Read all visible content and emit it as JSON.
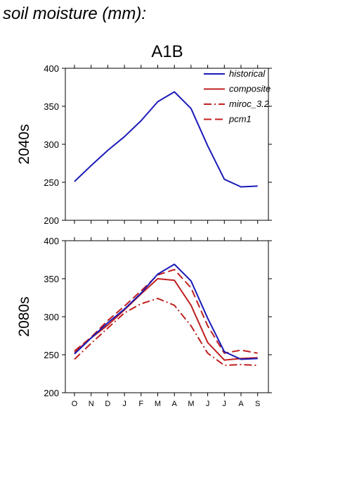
{
  "page": {
    "heading": "soil moisture (mm):",
    "scenario": "A1B"
  },
  "colors": {
    "historical": "#1a1ab8",
    "models": "#c02020",
    "axis": "#000000"
  },
  "chart_data": [
    {
      "type": "line",
      "row_label": "2040s",
      "categories": [
        "O",
        "N",
        "D",
        "J",
        "F",
        "M",
        "A",
        "M",
        "J",
        "J",
        "A",
        "S"
      ],
      "ylim": [
        200,
        400
      ],
      "yticks": [
        200,
        250,
        300,
        350,
        400
      ],
      "series": [
        {
          "name": "historical",
          "style": "solid",
          "color": "#1a1ab8",
          "values": [
            251,
            272,
            292,
            310,
            331,
            356,
            369,
            347,
            298,
            254,
            244,
            245
          ]
        }
      ],
      "legend": {
        "placement": "top-right",
        "entries": [
          {
            "label": "historical",
            "style": "solid",
            "color": "#1a1ab8"
          },
          {
            "label": "composite",
            "style": "solid",
            "color": "#c02020"
          },
          {
            "label": "miroc_3.2",
            "style": "dashdot",
            "color": "#c02020"
          },
          {
            "label": "pcm1",
            "style": "dashed",
            "color": "#c02020"
          }
        ]
      }
    },
    {
      "type": "line",
      "row_label": "2080s",
      "categories": [
        "O",
        "N",
        "D",
        "J",
        "F",
        "M",
        "A",
        "M",
        "J",
        "J",
        "A",
        "S"
      ],
      "ylim": [
        200,
        400
      ],
      "yticks": [
        200,
        250,
        300,
        350,
        400
      ],
      "series": [
        {
          "name": "historical",
          "style": "solid",
          "color": "#1a1ab8",
          "values": [
            251,
            272,
            292,
            310,
            331,
            356,
            369,
            347,
            298,
            254,
            244,
            245
          ]
        },
        {
          "name": "composite",
          "style": "solid",
          "color": "#c02020",
          "values": [
            253,
            272,
            289,
            309,
            330,
            350,
            348,
            315,
            266,
            243,
            245,
            246
          ]
        },
        {
          "name": "miroc_3.2",
          "style": "dashdot",
          "color": "#c02020",
          "values": [
            244,
            265,
            285,
            305,
            317,
            324,
            315,
            288,
            252,
            236,
            237,
            236
          ]
        },
        {
          "name": "pcm1",
          "style": "dashed",
          "color": "#c02020",
          "values": [
            255,
            273,
            295,
            314,
            334,
            355,
            362,
            338,
            288,
            252,
            256,
            252
          ]
        }
      ]
    }
  ]
}
